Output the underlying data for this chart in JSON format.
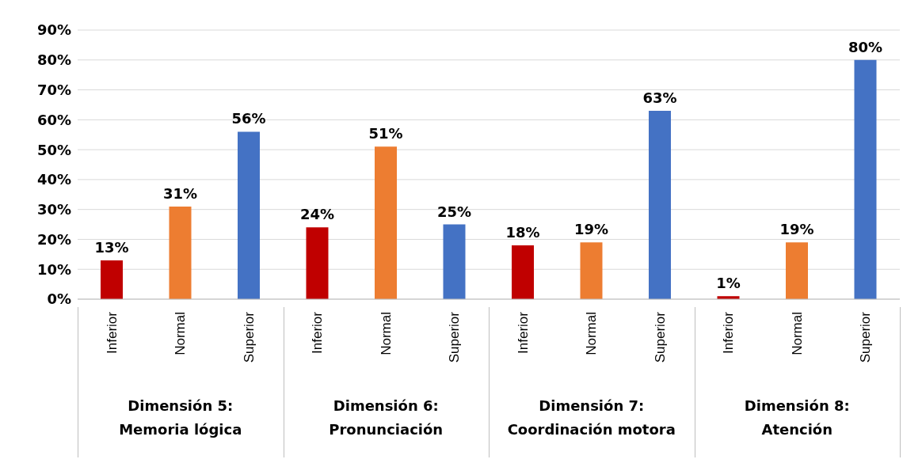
{
  "chart_data": {
    "type": "bar",
    "categories": [
      "Inferior",
      "Normal",
      "Superior",
      "Inferior",
      "Normal",
      "Superior",
      "Inferior",
      "Normal",
      "Superior",
      "Inferior",
      "Normal",
      "Superior"
    ],
    "values": [
      13,
      31,
      56,
      24,
      51,
      25,
      18,
      19,
      63,
      1,
      19,
      80
    ],
    "colors": [
      "#c00000",
      "#ed7d31",
      "#4472c4",
      "#c00000",
      "#ed7d31",
      "#4472c4",
      "#c00000",
      "#ed7d31",
      "#4472c4",
      "#c00000",
      "#ed7d31",
      "#4472c4"
    ],
    "value_labels": [
      "13%",
      "31%",
      "56%",
      "24%",
      "51%",
      "25%",
      "18%",
      "19%",
      "63%",
      "1%",
      "19%",
      "80%"
    ],
    "ylim": [
      0,
      90
    ],
    "yticks": [
      {
        "value": 0,
        "label": "0%"
      },
      {
        "value": 10,
        "label": "10%"
      },
      {
        "value": 20,
        "label": "20%"
      },
      {
        "value": 30,
        "label": "30%"
      },
      {
        "value": 40,
        "label": "40%"
      },
      {
        "value": 50,
        "label": "50%"
      },
      {
        "value": 60,
        "label": "60%"
      },
      {
        "value": 70,
        "label": "70%"
      },
      {
        "value": 80,
        "label": "80%"
      },
      {
        "value": 90,
        "label": "90%"
      }
    ],
    "grid": "y",
    "annotations": [
      "Dimensión 5:\nMemoria lógica",
      "Dimensión 6:\nPronunciación",
      "Dimensión 7:\nCoordinación motora",
      "Dimensión 8:\nAtención"
    ]
  }
}
